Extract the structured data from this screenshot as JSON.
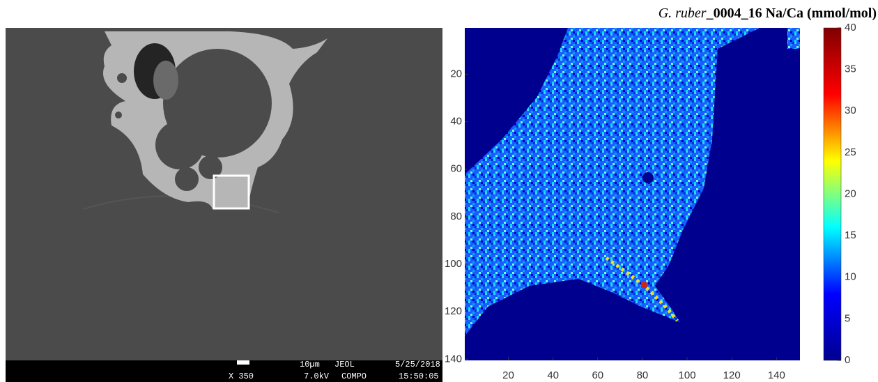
{
  "sem": {
    "scale": "10µm",
    "maker": "JEOL",
    "date": "5/25/2018",
    "magnification": "X 350",
    "voltage": "7.0kV",
    "mode": "COMPO",
    "time": "15:50:05"
  },
  "chart_data": {
    "type": "heatmap",
    "title_species": "G. ruber",
    "title_rest": "_0004_16 Na/Ca (mmol/mol)",
    "xlim": [
      0.5,
      150.5
    ],
    "xticks": [
      20,
      40,
      60,
      80,
      100,
      120,
      140
    ],
    "ylim": [
      0.5,
      140.5
    ],
    "yticks": [
      20,
      40,
      60,
      80,
      100,
      120,
      140
    ],
    "y_reversed": true,
    "clim": [
      0,
      40
    ],
    "cticks": [
      0,
      5,
      10,
      15,
      20,
      25,
      30,
      35,
      40
    ],
    "colormap": [
      "#00008f",
      "#0000ff",
      "#00ffff",
      "#ffff00",
      "#ff0000",
      "#800000"
    ]
  }
}
